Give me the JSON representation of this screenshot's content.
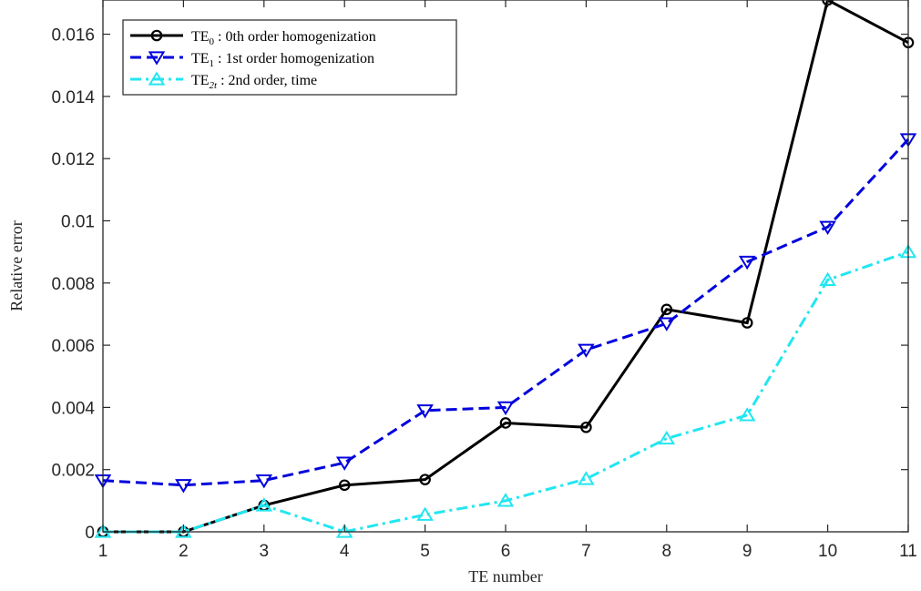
{
  "chart_data": {
    "type": "line",
    "title": "",
    "xlabel": "TE number",
    "ylabel": "Relative error",
    "x": [
      1,
      2,
      3,
      4,
      5,
      6,
      7,
      8,
      9,
      10,
      11
    ],
    "xlim": [
      1,
      11
    ],
    "ylim": [
      0,
      0.0171
    ],
    "xticks": [
      "1",
      "2",
      "3",
      "4",
      "5",
      "6",
      "7",
      "8",
      "9",
      "10",
      "11"
    ],
    "yticks": [
      0,
      0.002,
      0.004,
      0.006,
      0.008,
      0.01,
      0.012,
      0.014,
      0.016
    ],
    "ytick_labels": [
      "0",
      "0.002",
      "0.004",
      "0.006",
      "0.008",
      "0.01",
      "0.012",
      "0.014",
      "0.016"
    ],
    "grid": false,
    "legend_position": "top-left",
    "series": [
      {
        "name": "TE0 : 0th order homogenization",
        "legend_main": "TE",
        "legend_sub": "0",
        "legend_rest": " : 0th order homogenization",
        "color": "#000000",
        "line_style": "solid",
        "marker": "circle",
        "values": [
          0.0,
          0.0,
          0.00085,
          0.0015,
          0.00168,
          0.0035,
          0.00336,
          0.00715,
          0.00672,
          0.0171,
          0.01573
        ]
      },
      {
        "name": "TE1 : 1st order homogenization",
        "legend_main": "TE",
        "legend_sub": "1",
        "legend_rest": " : 1st order homogenization",
        "color": "#0000dd",
        "line_style": "dashed",
        "marker": "triangle-down",
        "values": [
          0.00165,
          0.0015,
          0.00165,
          0.00222,
          0.0039,
          0.004,
          0.00585,
          0.0067,
          0.00868,
          0.0098,
          0.01262
        ]
      },
      {
        "name": "TE2t : 2nd order, time",
        "legend_main": "TE",
        "legend_sub": "2t",
        "legend_rest": " : 2nd order, time",
        "color": "#22e6f0",
        "line_style": "dashdot",
        "marker": "triangle-up",
        "values": [
          0.0,
          0.0,
          0.00085,
          0.0,
          0.00055,
          0.001,
          0.0017,
          0.003,
          0.00375,
          0.0081,
          0.009
        ]
      }
    ]
  }
}
